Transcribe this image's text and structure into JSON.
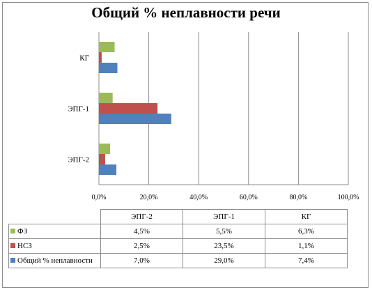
{
  "chart_data": {
    "type": "bar",
    "orientation": "horizontal",
    "title": "Общий % неплавности речи",
    "categories": [
      "ЭПГ-2",
      "ЭПГ-1",
      "КГ"
    ],
    "series": [
      {
        "name": "ФЗ",
        "values": [
          4.5,
          5.5,
          6.3
        ],
        "color": "#9bbb59",
        "display": [
          "4,5%",
          "5,5%",
          "6,3%"
        ]
      },
      {
        "name": "НСЗ",
        "values": [
          2.5,
          23.5,
          1.1
        ],
        "color": "#c0504d",
        "display": [
          "2,5%",
          "23,5%",
          "1,1%"
        ]
      },
      {
        "name": "Общий % неплавности",
        "values": [
          7.0,
          29.0,
          7.4
        ],
        "color": "#4f81bd",
        "display": [
          "7,0%",
          "29,0%",
          "7,4%"
        ]
      }
    ],
    "xlim": [
      0,
      100
    ],
    "ticks": [
      "0,0%",
      "20,0%",
      "40,0%",
      "60,0%",
      "80,0%",
      "100,0%"
    ],
    "grid": true,
    "legend": "data-table"
  }
}
